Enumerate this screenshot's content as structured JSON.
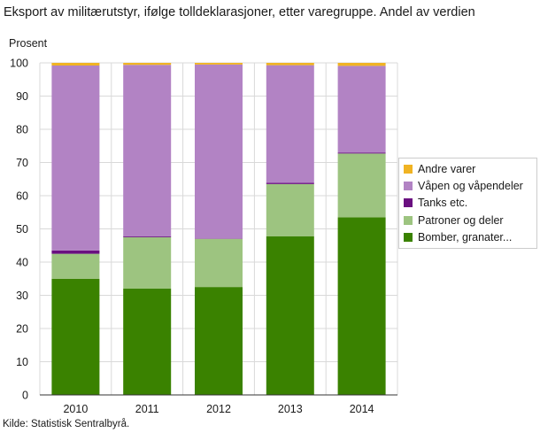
{
  "title": "Eksport av militærutstyr, ifølge tolldeklarasjoner, etter varegruppe. Andel av verdien",
  "ylabel": "Prosent",
  "source": "Kilde: Statistisk Sentralbyrå.",
  "chart_data": {
    "type": "bar",
    "stacked": true,
    "categories": [
      "2010",
      "2011",
      "2012",
      "2013",
      "2014"
    ],
    "ylim": [
      0,
      100
    ],
    "yticks": [
      0,
      10,
      20,
      30,
      40,
      50,
      60,
      70,
      80,
      90,
      100
    ],
    "grid": true,
    "legend_position": "right",
    "series": [
      {
        "name": "Bomber,  granater...",
        "color": "#3a8200",
        "values": [
          35,
          32,
          32.5,
          47.8,
          53.5
        ]
      },
      {
        "name": "Patroner og deler",
        "color": "#9dc480",
        "values": [
          7.5,
          15.5,
          14.5,
          15.7,
          19.2
        ]
      },
      {
        "name": "Tanks etc.",
        "color": "#6a1080",
        "values": [
          1,
          0.3,
          0.1,
          0.4,
          0.3
        ]
      },
      {
        "name": "Våpen og våpendeler",
        "color": "#b283c4",
        "values": [
          55.7,
          51.6,
          52.4,
          35.4,
          26.1
        ]
      },
      {
        "name": "Andre varer",
        "color": "#f0b323",
        "values": [
          0.8,
          0.6,
          0.5,
          0.7,
          0.9
        ]
      }
    ]
  }
}
